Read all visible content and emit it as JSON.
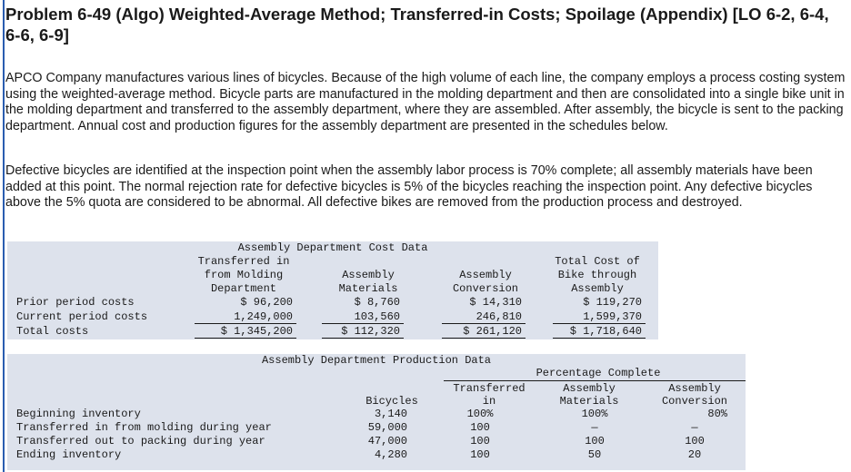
{
  "title": "Problem 6-49 (Algo) Weighted-Average Method; Transferred-in Costs; Spoilage (Appendix) [LO 6-2, 6-4, 6-6, 6-9]",
  "paragraphs": [
    "APCO Company manufactures various lines of bicycles. Because of the high volume of each line, the company employs a process costing system using the weighted-average method. Bicycle parts are manufactured in the molding department and then are consolidated into a single bike unit in the molding department and transferred to the assembly department, where they are assembled. After assembly, the bicycle is sent to the packing department. Annual cost and production figures for the assembly department are presented in the schedules below.",
    "Defective bicycles are identified at the inspection point when the assembly labor process is 70% complete; all assembly materials have been added at this point. The normal rejection rate for defective bicycles is 5% of the bicycles reaching the inspection point. Any defective bicycles above the 5% quota are considered to be abnormal. All defective bikes are removed from the production process and destroyed."
  ],
  "cost_table": {
    "title": "Assembly Department Cost Data",
    "headers": [
      [
        "Transferred in",
        "from Molding",
        "Department"
      ],
      [
        "Assembly",
        "Materials"
      ],
      [
        "Assembly",
        "Conversion"
      ],
      [
        "Total Cost of",
        "Bike through",
        "Assembly"
      ]
    ],
    "rows": [
      {
        "label": "Prior period costs",
        "values": [
          "$ 96,200",
          "$ 8,760",
          "$ 14,310",
          "$ 119,270"
        ]
      },
      {
        "label": "Current period costs",
        "values": [
          "1,249,000",
          "103,560",
          "246,810",
          "1,599,370"
        ]
      },
      {
        "label": "Total costs",
        "values": [
          "$ 1,345,200",
          "$ 112,320",
          "$ 261,120",
          "$ 1,718,640"
        ]
      }
    ]
  },
  "production_table": {
    "title": "Assembly Department Production Data",
    "group_header": "Percentage Complete",
    "headers": [
      [
        "Bicycles"
      ],
      [
        "Transferred",
        "in"
      ],
      [
        "Assembly",
        "Materials"
      ],
      [
        "Assembly",
        "Conversion"
      ]
    ],
    "rows": [
      {
        "label": "Beginning inventory",
        "values": [
          "3,140",
          "100%",
          "100%",
          "80%"
        ]
      },
      {
        "label": "Transferred in from molding during year",
        "values": [
          "59,000",
          "100",
          "—",
          "—"
        ]
      },
      {
        "label": "Transferred out to packing during year",
        "values": [
          "47,000",
          "100",
          "100",
          "100"
        ]
      },
      {
        "label": "Ending inventory",
        "values": [
          "4,280",
          "100",
          "50",
          "20"
        ]
      }
    ]
  }
}
